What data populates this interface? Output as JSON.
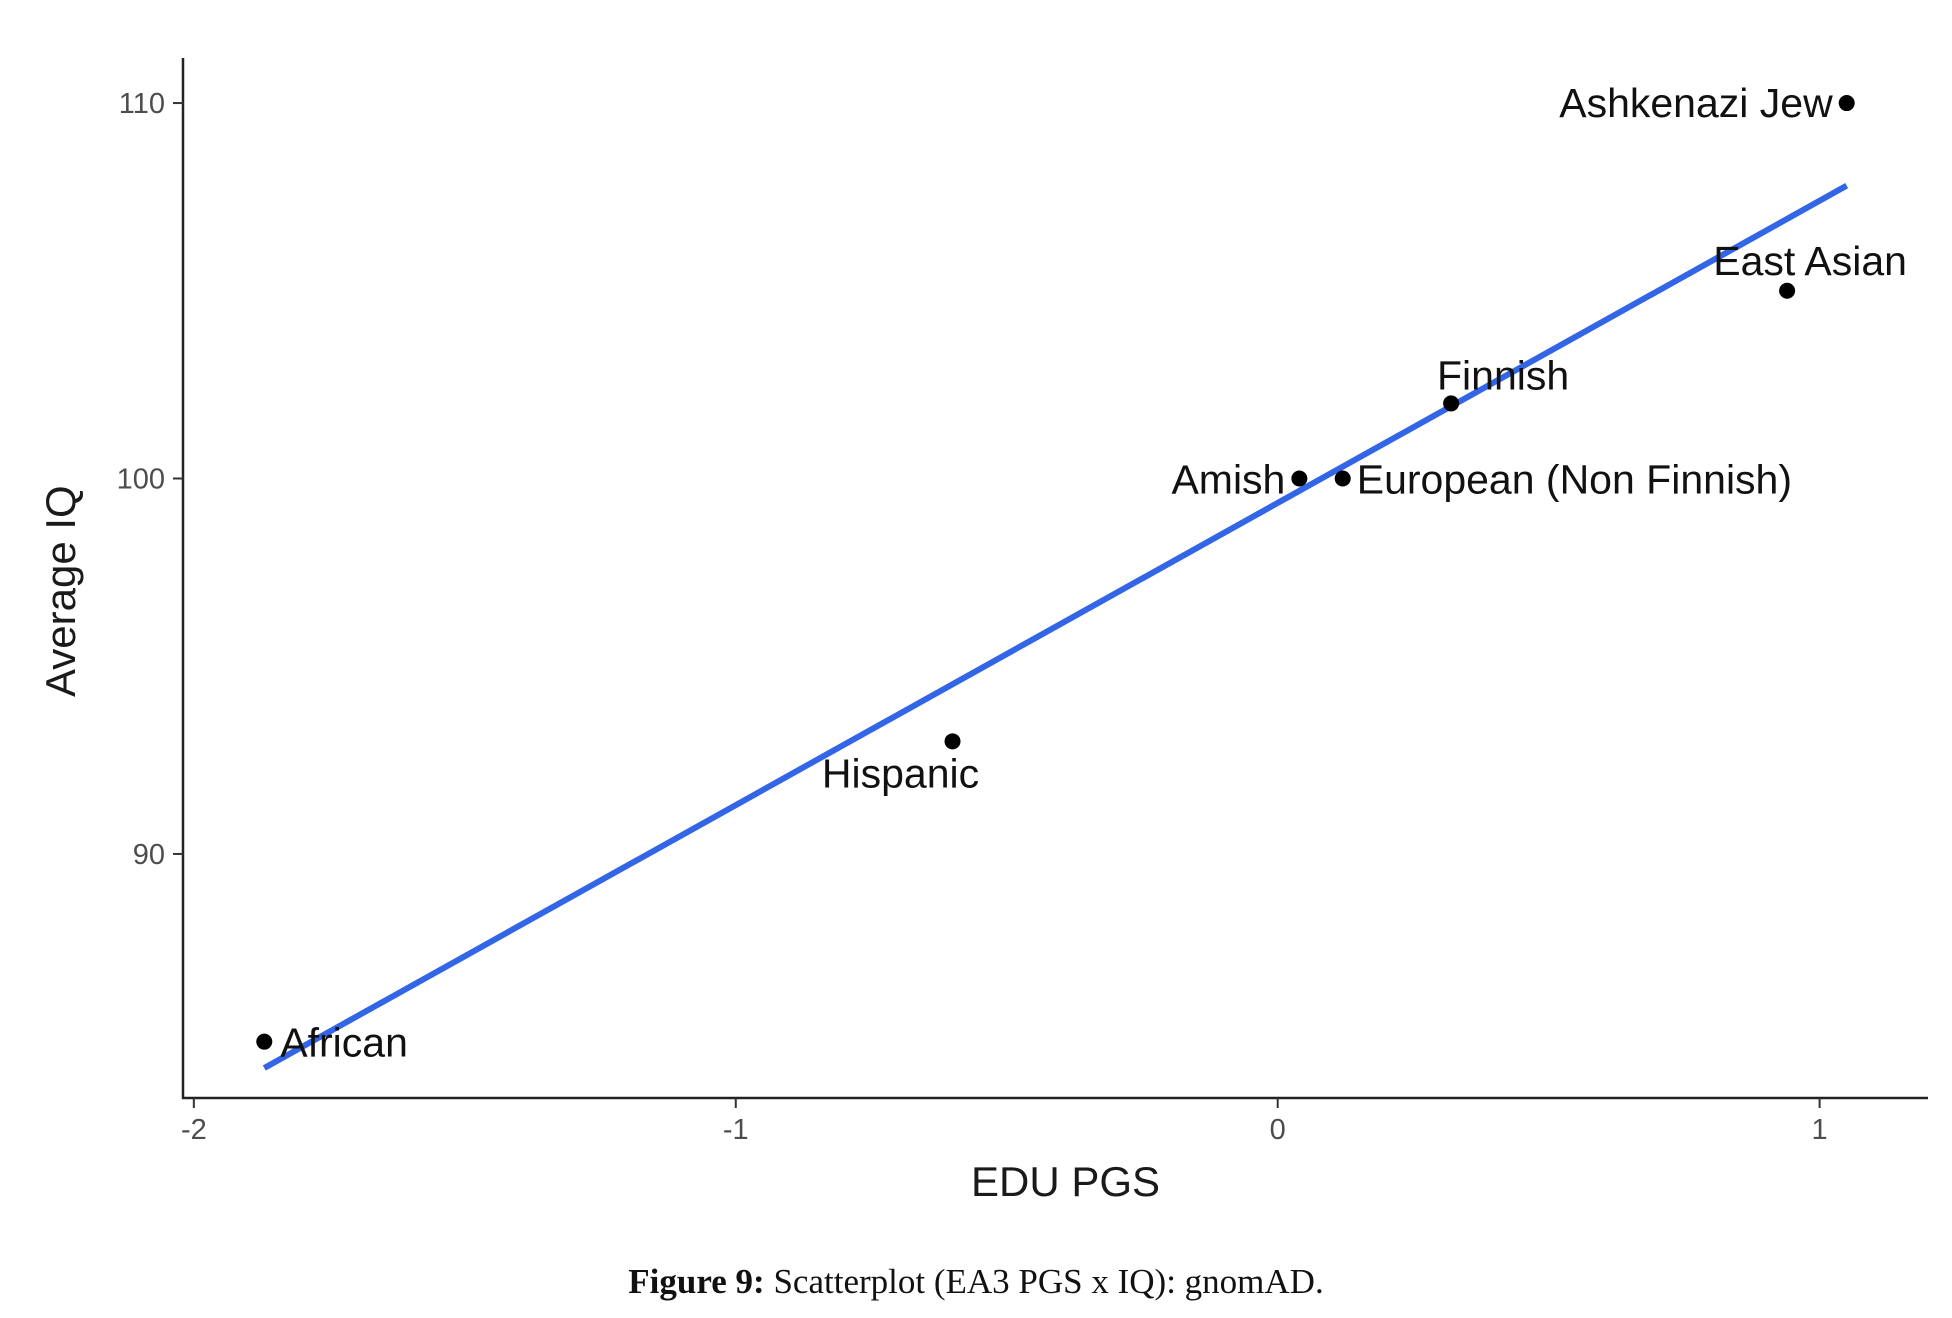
{
  "chart_data": {
    "type": "scatter",
    "xlabel": "EDU PGS",
    "ylabel": "Average IQ",
    "xlim": [
      -2.02,
      1.2
    ],
    "ylim": [
      83.5,
      111.2
    ],
    "xticks": [
      -2,
      -1,
      0,
      1
    ],
    "yticks": [
      90,
      100,
      110
    ],
    "points": [
      {
        "label": "Ashkenazi Jew",
        "x": 1.05,
        "y": 110
      },
      {
        "label": "East Asian",
        "x": 0.94,
        "y": 105
      },
      {
        "label": "Finnish",
        "x": 0.32,
        "y": 102
      },
      {
        "label": "Amish",
        "x": 0.04,
        "y": 100
      },
      {
        "label": "European (Non Finnish)",
        "x": 0.12,
        "y": 100
      },
      {
        "label": "Hispanic",
        "x": -0.6,
        "y": 93
      },
      {
        "label": "African",
        "x": -1.87,
        "y": 85
      }
    ],
    "fit_line": {
      "x": [
        -1.87,
        1.05
      ],
      "y": [
        84.3,
        107.8
      ],
      "color": "#3366e6"
    },
    "point_color": "#000000",
    "grid": false
  },
  "caption": {
    "label": "Figure 9:",
    "text": " Scatterplot (EA3 PGS x IQ): gnomAD."
  }
}
